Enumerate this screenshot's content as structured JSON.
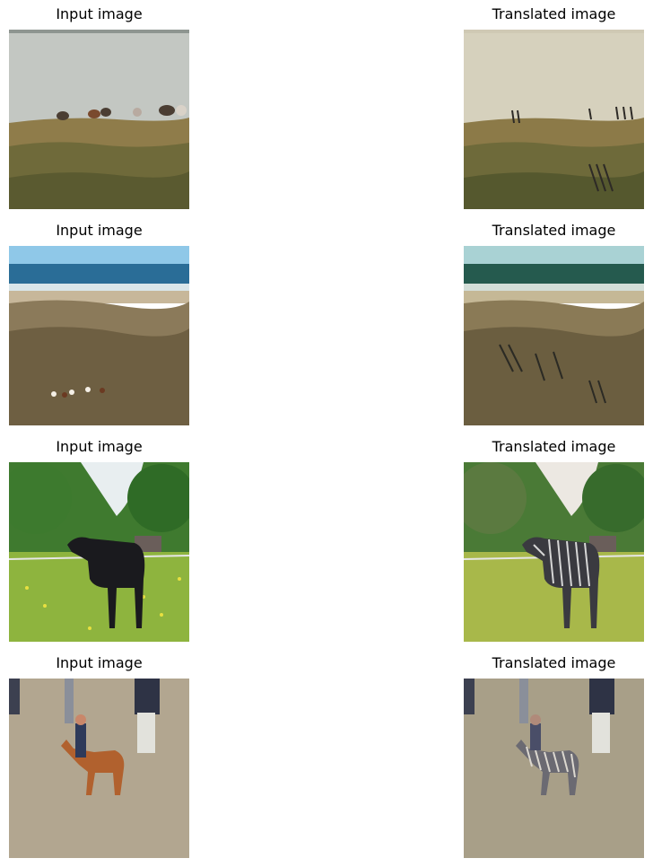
{
  "rows": [
    {
      "input_title": "Input image",
      "output_title": "Translated image"
    },
    {
      "input_title": "Input image",
      "output_title": "Translated image"
    },
    {
      "input_title": "Input image",
      "output_title": "Translated image"
    },
    {
      "input_title": "Input image",
      "output_title": "Translated image"
    }
  ]
}
